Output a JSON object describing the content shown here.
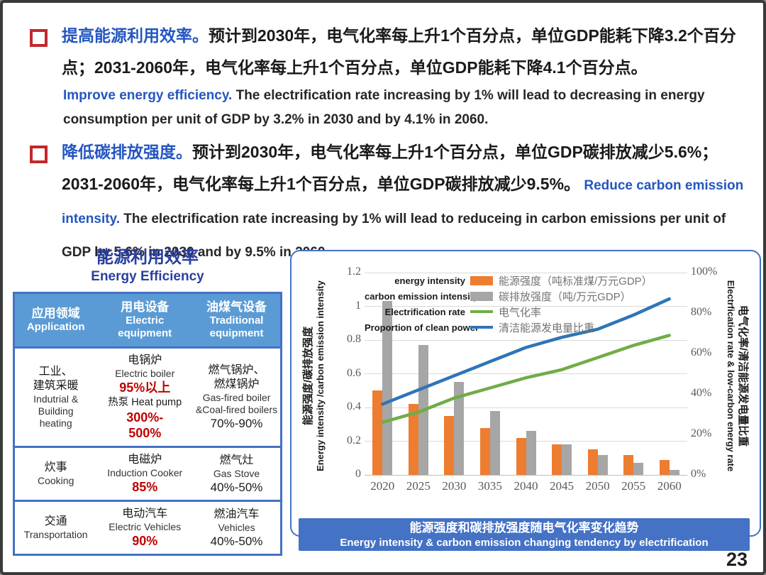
{
  "page_number": "23",
  "bullets": [
    {
      "zh_lead": "提高能源利用效率。",
      "zh_body": "预计到2030年，电气化率每上升1个百分点，单位GDP能耗下降3.2个百分点；2031-2060年，电气化率每上升1个百分点，单位GDP能耗下降4.1个百分点。",
      "en_lead": "Improve energy efficiency.",
      "en_body": " The electrification rate increasing by 1% will lead to decreasing in energy consumption per unit of GDP by 3.2% in 2030 and by 4.1% in 2060."
    },
    {
      "zh_lead": "降低碳排放强度。",
      "zh_body": "预计到2030年，电气化率每上升1个百分点，单位GDP碳排放减少5.6%；2031-2060年，电气化率每上升1个百分点，单位GDP碳排放减少9.5%。",
      "en_lead": " Reduce carbon emission intensity.",
      "en_body": " The electrification rate increasing by 1% will lead to reduceing in carbon emissions per unit of GDP by 5.6% in 2030 and by 9.5% in 2060."
    }
  ],
  "efficiency_table": {
    "title_zh": "能源利用效率",
    "title_en": "Energy Efficiency",
    "headers": {
      "col1_zh": "应用领域",
      "col1_en": "Application",
      "col2_zh": "用电设备",
      "col2_en": "Electric\nequipment",
      "col3_zh": "油煤气设备",
      "col3_en": "Traditional\nequipment"
    },
    "rows": [
      {
        "app_zh": "工业、\n建筑采暖",
        "app_en": "Indutrial &\nBuilding\nheating",
        "elec_name_zh": "电锅炉",
        "elec_name_en": "Electric boiler",
        "elec_eff": "95%以上",
        "elec_name2": "热泵 Heat pump",
        "elec_eff2": "300%-\n500%",
        "trad_name_zh": "燃气锅炉、\n燃煤锅炉",
        "trad_name_en": "Gas-fired boiler\n&Coal-fired boilers",
        "trad_eff": "70%-90%"
      },
      {
        "app_zh": "炊事",
        "app_en": "Cooking",
        "elec_name_zh": "电磁炉",
        "elec_name_en": "Induction Cooker",
        "elec_eff": "85%",
        "trad_name_zh": "燃气灶",
        "trad_name_en": "Gas Stove",
        "trad_eff": "40%-50%"
      },
      {
        "app_zh": "交通",
        "app_en": "Transportation",
        "elec_name_zh": "电动汽车",
        "elec_name_en": "Electric Vehicles",
        "elec_eff": "90%",
        "trad_name_zh": "燃油汽车",
        "trad_name_en": "Vehicles",
        "trad_eff": "40%-50%"
      }
    ]
  },
  "chart_data": {
    "type": "bar+line combo",
    "categories": [
      "2020",
      "2025",
      "2030",
      "3035",
      "2040",
      "2045",
      "2050",
      "2055",
      "2060"
    ],
    "series": [
      {
        "name_en": "energy intensity",
        "name_zh": "能源强度（吨标准煤/万元GDP）",
        "type": "bar",
        "color": "#ED7D31",
        "axis": "left",
        "values": [
          0.5,
          0.42,
          0.35,
          0.28,
          0.22,
          0.18,
          0.15,
          0.12,
          0.09
        ]
      },
      {
        "name_en": "carbon emission intensity",
        "name_zh": "碳排放强度（吨/万元GDP）",
        "type": "bar",
        "color": "#A6A6A6",
        "axis": "left",
        "values": [
          1.03,
          0.77,
          0.55,
          0.38,
          0.26,
          0.18,
          0.12,
          0.07,
          0.03
        ]
      },
      {
        "name_en": "Electrification rate",
        "name_zh": "电气化率",
        "type": "line",
        "color": "#70AD47",
        "axis": "right",
        "values": [
          26,
          31,
          38,
          43,
          48,
          52,
          58,
          64,
          69
        ]
      },
      {
        "name_en": "Proportion of clean power",
        "name_zh": "清洁能源发电量比重",
        "type": "line",
        "color": "#2E75B6",
        "axis": "right",
        "values": [
          35,
          42,
          49,
          56,
          63,
          68,
          72,
          79,
          87
        ]
      }
    ],
    "left_axis": {
      "ticks": [
        "1.2",
        "1",
        "0.8",
        "0.6",
        "0.4",
        "0.2",
        "0"
      ],
      "max": 1.2,
      "label_zh": "能源强度/碳排放强度",
      "label_en": "Energy intensity /carbon emission intensity"
    },
    "right_axis": {
      "ticks": [
        "100%",
        "80%",
        "60%",
        "40%",
        "20%",
        "0%"
      ],
      "max": 100,
      "label_zh": "电气化率/清洁能源发电量比重",
      "label_en": "Electrfication rate & low-carbon energy rate"
    },
    "grid": true,
    "legend_position": "inside-top",
    "caption_zh": "能源强度和碳排放强度随电气化率变化趋势",
    "caption_en": "Energy intensity & carbon emission changing tendency by electrification"
  }
}
